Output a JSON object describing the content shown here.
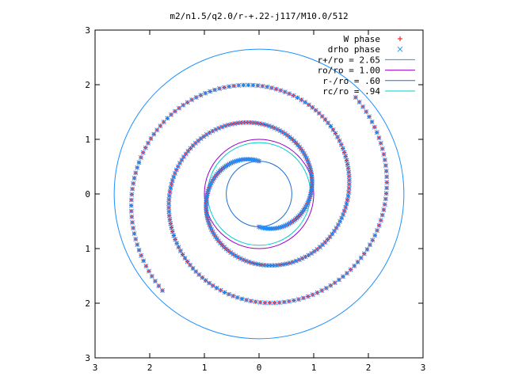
{
  "chart_data": {
    "type": "scatter",
    "title": "m2/n1.5/q2.0/r-+.22-j117/M10.0/512",
    "xlabel": "",
    "ylabel": "",
    "xlim": [
      -3,
      3
    ],
    "ylim": [
      -3,
      3
    ],
    "x_ticks": [
      {
        "value": -3,
        "label": "3"
      },
      {
        "value": -2,
        "label": "2"
      },
      {
        "value": -1,
        "label": "1"
      },
      {
        "value": 0,
        "label": "0"
      },
      {
        "value": 1,
        "label": "1"
      },
      {
        "value": 2,
        "label": "2"
      },
      {
        "value": 3,
        "label": "3"
      }
    ],
    "y_ticks": [
      {
        "value": -3,
        "label": "3"
      },
      {
        "value": -2,
        "label": "2"
      },
      {
        "value": -1,
        "label": "1"
      },
      {
        "value": 0,
        "label": "0"
      },
      {
        "value": 1,
        "label": "1"
      },
      {
        "value": 2,
        "label": "2"
      },
      {
        "value": 3,
        "label": "3"
      }
    ],
    "grid": false,
    "legend_position": "top-right",
    "series": [
      {
        "name": "W phase",
        "marker": "plus",
        "color": "#ff0000",
        "arms": [
          {
            "r_start": 0.6,
            "r_end": 2.5,
            "theta_start_deg": 90,
            "theta_span_deg": 495,
            "points": 200
          },
          {
            "r_start": 0.6,
            "r_end": 2.5,
            "theta_start_deg": 270,
            "theta_span_deg": 495,
            "points": 200
          }
        ]
      },
      {
        "name": "drho phase",
        "marker": "x",
        "color": "#1e90ff",
        "arms": [
          {
            "r_start": 0.6,
            "r_end": 2.5,
            "theta_start_deg": 90,
            "theta_span_deg": 495,
            "points": 200
          },
          {
            "r_start": 0.6,
            "r_end": 2.5,
            "theta_start_deg": 270,
            "theta_span_deg": 495,
            "points": 200
          }
        ]
      }
    ],
    "circles": [
      {
        "name": "r+/ro = 2.65",
        "radius": 2.65,
        "color": "#1e90ff"
      },
      {
        "name": "ro/ro = 1.00",
        "radius": 1.0,
        "color": "#9900cc"
      },
      {
        "name": "r-/ro = .60",
        "radius": 0.6,
        "color": "#1e6fd9"
      },
      {
        "name": "rc/ro = .94",
        "radius": 0.94,
        "color": "#00cccc"
      }
    ]
  }
}
